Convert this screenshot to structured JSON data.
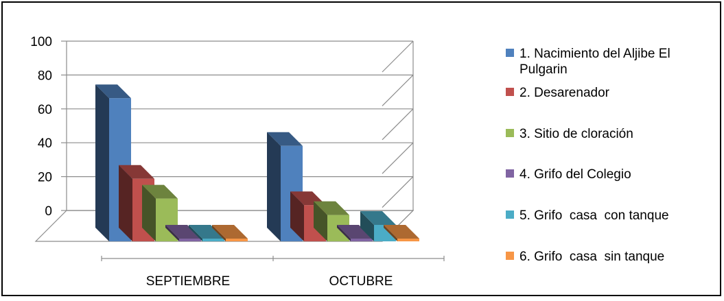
{
  "chart_data": {
    "type": "bar",
    "title": "",
    "xlabel": "",
    "ylabel": "",
    "ylim": [
      0,
      100
    ],
    "yticks": [
      0,
      20,
      40,
      60,
      80,
      100
    ],
    "categories": [
      "SEPTIEMBRE",
      "OCTUBRE"
    ],
    "series": [
      {
        "name": "1. Nacimiento del Aljibe El Pulgarin",
        "color": "#4F81BD",
        "values": [
          87,
          58
        ]
      },
      {
        "name": "2. Desarenador",
        "color": "#C0504D",
        "values": [
          38,
          22
        ]
      },
      {
        "name": "3. Sitio de cloración",
        "color": "#9BBB59",
        "values": [
          26,
          16
        ]
      },
      {
        "name": "4. Grifo del Colegio",
        "color": "#8064A2",
        "values": [
          0,
          0
        ]
      },
      {
        "name": "5. Grifo  casa  con tanque",
        "color": "#4BACC6",
        "values": [
          0,
          10
        ]
      },
      {
        "name": "6. Grifo  casa  sin tanque",
        "color": "#F79646",
        "values": [
          0,
          0
        ]
      }
    ],
    "grid": true,
    "legend": "right",
    "style": "3d-column"
  }
}
